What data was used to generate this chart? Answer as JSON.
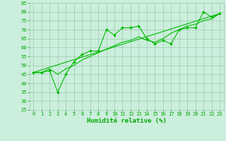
{
  "xlabel": "Humidité relative (%)",
  "xlim": [
    -0.5,
    23.5
  ],
  "ylim": [
    25,
    85
  ],
  "xticks": [
    0,
    1,
    2,
    3,
    4,
    5,
    6,
    7,
    8,
    9,
    10,
    11,
    12,
    13,
    14,
    15,
    16,
    17,
    18,
    19,
    20,
    21,
    22,
    23
  ],
  "yticks": [
    25,
    30,
    35,
    40,
    45,
    50,
    55,
    60,
    65,
    70,
    75,
    80,
    85
  ],
  "background_color": "#cceedd",
  "grid_color": "#99ccaa",
  "line_color": "#00bb00",
  "line1_x": [
    0,
    1,
    2,
    3,
    4,
    5,
    6,
    7,
    8,
    9,
    10,
    11,
    12,
    13,
    14,
    15,
    16,
    17,
    18,
    19,
    20,
    21,
    22,
    23
  ],
  "line1_y": [
    46,
    46,
    47,
    35,
    45,
    52,
    56,
    58,
    58,
    70,
    67,
    71,
    71,
    72,
    65,
    62,
    64,
    62,
    70,
    71,
    71,
    80,
    77,
    79
  ],
  "line2_x": [
    0,
    1,
    2,
    3,
    4,
    5,
    6,
    7,
    8,
    9,
    10,
    11,
    12,
    13,
    14,
    15,
    16,
    17,
    18,
    19,
    20,
    21,
    22,
    23
  ],
  "line2_y": [
    46,
    46,
    48,
    45,
    48,
    50,
    53,
    55,
    57,
    59,
    61,
    63,
    64,
    66,
    64,
    63,
    65,
    68,
    70,
    72,
    73,
    75,
    76,
    79
  ],
  "line3_x": [
    0,
    23
  ],
  "line3_y": [
    46,
    79
  ],
  "font_color": "#00aa00",
  "tick_fontsize": 5.0,
  "label_fontsize": 6.5
}
